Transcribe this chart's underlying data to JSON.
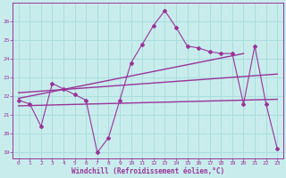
{
  "xlabel": "Windchill (Refroidissement éolien,°C)",
  "bg_color": "#c8ecec",
  "line_color": "#993399",
  "grid_color": "#aadddd",
  "x_ticks": [
    0,
    1,
    2,
    3,
    4,
    5,
    6,
    7,
    8,
    9,
    10,
    11,
    12,
    13,
    14,
    15,
    16,
    17,
    18,
    19,
    20,
    21,
    22,
    23
  ],
  "y_ticks": [
    19,
    20,
    21,
    22,
    23,
    24,
    25,
    26
  ],
  "ylim": [
    18.7,
    27.0
  ],
  "xlim": [
    -0.5,
    23.5
  ],
  "series1": [
    21.8,
    21.6,
    20.4,
    22.7,
    22.4,
    22.1,
    21.8,
    19.0,
    19.8,
    21.8,
    23.8,
    24.8,
    25.8,
    26.6,
    25.7,
    24.7,
    24.6,
    24.4,
    24.3,
    24.3,
    21.6,
    24.7,
    21.6,
    19.2
  ],
  "trend1_x": [
    0,
    20
  ],
  "trend1_y": [
    21.9,
    24.3
  ],
  "trend2_x": [
    0,
    23
  ],
  "trend2_y": [
    22.2,
    23.2
  ],
  "trend3_x": [
    0,
    23
  ],
  "trend3_y": [
    21.5,
    21.85
  ]
}
